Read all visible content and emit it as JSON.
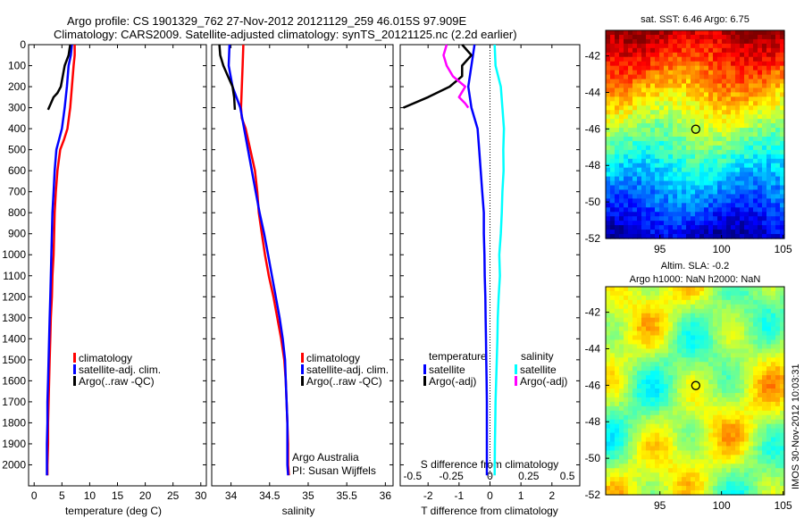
{
  "header": {
    "line1": "Argo profile: CS 1901329_762 27-Nov-2012 20121129_259 46.015S 97.909E",
    "line2": "Climatology: CARS2009. Satellite-adjusted climatology: synTS_20121125.nc (2.2d earlier)"
  },
  "side_label": "IMOS 30-Nov-2012 10:03:31",
  "colors": {
    "climatology": "#ff0000",
    "satellite_adj": "#0000ff",
    "argo": "#000000",
    "satellite_s": "#00ffff",
    "argo_s": "#ff00ff"
  },
  "chart_data": [
    {
      "id": "temperature",
      "type": "line",
      "xlabel": "temperature (deg C)",
      "ylabel": "",
      "xlim": [
        -1,
        31
      ],
      "ylim": [
        2100,
        0
      ],
      "xticks": [
        0,
        5,
        10,
        15,
        20,
        25,
        30
      ],
      "xtick_labels": [
        "0",
        "5",
        "10",
        "15",
        "20",
        "25",
        "30"
      ],
      "yticks": [
        0,
        100,
        200,
        300,
        400,
        500,
        600,
        700,
        800,
        900,
        1000,
        1100,
        1200,
        1300,
        1400,
        1500,
        1600,
        1700,
        1800,
        1900,
        2000
      ],
      "ytick_labels": [
        "0",
        "100",
        "200",
        "300",
        "400",
        "500",
        "600",
        "700",
        "800",
        "900",
        "1000",
        "1100",
        "1200",
        "1300",
        "1400",
        "1500",
        "1600",
        "1700",
        "1800",
        "1900",
        "2000"
      ],
      "legend": [
        "climatology",
        "satellite-adj. clim.",
        "Argo(..raw -QC)"
      ],
      "series": [
        {
          "name": "climatology",
          "color_key": "climatology",
          "x": [
            7.3,
            7.3,
            7.1,
            6.8,
            6.5,
            6.0,
            5.4,
            4.7,
            4.2,
            3.9,
            3.7,
            3.6,
            3.5,
            3.3,
            3.2,
            3.0,
            2.9,
            2.8,
            2.7,
            2.6,
            2.5,
            2.5,
            2.4,
            2.4
          ],
          "y": [
            0,
            50,
            100,
            200,
            300,
            400,
            450,
            500,
            600,
            700,
            800,
            900,
            1000,
            1100,
            1200,
            1300,
            1400,
            1500,
            1600,
            1700,
            1800,
            1900,
            2000,
            2050
          ]
        },
        {
          "name": "satellite-adj. clim.",
          "color_key": "satellite_adj",
          "x": [
            6.8,
            6.6,
            6.2,
            5.9,
            5.5,
            5.0,
            4.5,
            4.0,
            3.7,
            3.5,
            3.3,
            3.2,
            3.1,
            3.0,
            2.9,
            2.8,
            2.7,
            2.6,
            2.5,
            2.4,
            2.4,
            2.3,
            2.3,
            2.3
          ],
          "y": [
            0,
            50,
            100,
            200,
            300,
            400,
            450,
            500,
            600,
            700,
            800,
            900,
            1000,
            1100,
            1200,
            1300,
            1400,
            1500,
            1600,
            1700,
            1800,
            1900,
            2000,
            2050
          ]
        },
        {
          "name": "Argo(..raw -QC)",
          "color_key": "argo",
          "x": [
            6.5,
            6.2,
            5.5,
            4.8,
            4.2,
            3.5,
            3.0,
            2.5
          ],
          "y": [
            0,
            50,
            100,
            200,
            230,
            250,
            280,
            310
          ]
        }
      ]
    },
    {
      "id": "salinity",
      "type": "line",
      "xlabel": "salinity",
      "xlim": [
        33.75,
        36.1
      ],
      "ylim": [
        2100,
        0
      ],
      "xticks": [
        34,
        34.5,
        35,
        35.5,
        36
      ],
      "xtick_labels": [
        "34",
        "34.5",
        "35",
        "35.5",
        "36"
      ],
      "legend": [
        "climatology",
        "satellite-adj. clim.",
        "Argo(..raw -QC)"
      ],
      "annotations": [
        "Argo Australia",
        "PI: Susan Wijffels"
      ],
      "series": [
        {
          "name": "climatology",
          "color_key": "climatology",
          "x": [
            34.16,
            34.15,
            34.14,
            34.13,
            34.14,
            34.19,
            34.25,
            34.31,
            34.34,
            34.36,
            34.4,
            34.44,
            34.49,
            34.55,
            34.6,
            34.65,
            34.69,
            34.71,
            34.72,
            34.73,
            34.74,
            34.74,
            34.75
          ],
          "y": [
            0,
            100,
            200,
            300,
            350,
            400,
            500,
            600,
            700,
            800,
            900,
            1000,
            1100,
            1200,
            1300,
            1400,
            1500,
            1600,
            1700,
            1800,
            1900,
            2000,
            2050
          ]
        },
        {
          "name": "satellite-adj. clim.",
          "color_key": "satellite_adj",
          "x": [
            33.98,
            33.97,
            34.02,
            34.12,
            34.17,
            34.22,
            34.27,
            34.32,
            34.37,
            34.43,
            34.48,
            34.53,
            34.58,
            34.63,
            34.67,
            34.7,
            34.71,
            34.72,
            34.73,
            34.73,
            34.73,
            34.74
          ],
          "y": [
            0,
            100,
            200,
            300,
            400,
            500,
            600,
            700,
            800,
            900,
            1000,
            1100,
            1200,
            1300,
            1400,
            1500,
            1600,
            1700,
            1800,
            1900,
            2000,
            2050
          ]
        },
        {
          "name": "Argo(..raw -QC)",
          "color_key": "argo",
          "x": [
            33.85,
            33.86,
            33.9,
            33.96,
            34.02,
            34.04,
            34.05
          ],
          "y": [
            0,
            50,
            100,
            150,
            200,
            250,
            310
          ]
        }
      ]
    },
    {
      "id": "difference",
      "type": "line",
      "xlabel": "T difference from climatology",
      "xlabel2": "S difference from climatology",
      "xlim": [
        -2.9,
        2.9
      ],
      "ylim": [
        2100,
        0
      ],
      "xticks": [
        -2,
        -1,
        0,
        1,
        2
      ],
      "xtick_labels": [
        "-2",
        "-1",
        "0",
        "1",
        "2"
      ],
      "xticks2": [
        -0.5,
        -0.25,
        0,
        0.25,
        0.5
      ],
      "xtick2_labels": [
        "-0.5",
        "-0.25",
        "0",
        "0.25",
        "0.5"
      ],
      "legend_titles": [
        "temperature",
        "salinity"
      ],
      "legend_t": [
        "satellite",
        "Argo(-adj)"
      ],
      "legend_s": [
        "satellite",
        "Argo(-adj)"
      ],
      "series": [
        {
          "name": "temperature satellite",
          "color_key": "satellite_adj",
          "x": [
            -0.5,
            -0.6,
            -0.7,
            -0.6,
            -0.4,
            -0.35,
            -0.3,
            -0.25,
            -0.2,
            -0.2,
            -0.18,
            -0.17,
            -0.15,
            -0.14,
            -0.13,
            -0.12,
            -0.11,
            -0.1,
            -0.1,
            -0.1,
            -0.1
          ],
          "y": [
            0,
            100,
            200,
            300,
            400,
            500,
            600,
            700,
            800,
            900,
            1000,
            1100,
            1200,
            1300,
            1400,
            1500,
            1600,
            1700,
            1800,
            1900,
            2050
          ]
        },
        {
          "name": "Argo temperature",
          "color_key": "argo",
          "x": [
            -0.9,
            -0.6,
            -0.9,
            -0.9,
            -1.3,
            -2.0,
            -2.8
          ],
          "y": [
            0,
            50,
            100,
            150,
            200,
            250,
            300
          ]
        },
        {
          "name": "salinity satellite",
          "color_key": "satellite_s",
          "x": [
            0.15,
            0.18,
            0.35,
            0.4,
            0.45,
            0.43,
            0.44,
            0.4,
            0.38,
            0.35,
            0.3,
            0.32,
            0.28,
            0.25,
            0.24,
            0.22,
            0.2,
            0.18,
            0.17,
            0.16,
            0.15
          ],
          "y": [
            0,
            100,
            200,
            300,
            400,
            500,
            600,
            700,
            800,
            900,
            1000,
            1100,
            1200,
            1300,
            1400,
            1500,
            1600,
            1700,
            1800,
            1900,
            2050
          ]
        },
        {
          "name": "Argo salinity",
          "color_key": "argo_s",
          "x": [
            -1.4,
            -1.5,
            -1.4,
            -1.2,
            -0.8,
            -1.0,
            -0.8,
            -0.7
          ],
          "y": [
            0,
            50,
            100,
            150,
            200,
            250,
            280,
            300
          ]
        }
      ]
    },
    {
      "id": "sst_map",
      "type": "heatmap",
      "title": "sat. SST: 6.46 Argo: 6.75",
      "xlim": [
        90.6,
        105.1
      ],
      "ylim": [
        -52,
        -40.6
      ],
      "xticks": [
        95,
        100,
        105
      ],
      "yticks": [
        -42,
        -44,
        -46,
        -48,
        -50,
        -52
      ],
      "xtick_labels": [
        "95",
        "100",
        "105"
      ],
      "ytick_labels": [
        "-42",
        "-44",
        "-46",
        "-48",
        "-50",
        "-52"
      ],
      "marker": {
        "lon": 97.909,
        "lat": -46.015
      }
    },
    {
      "id": "sla_map",
      "type": "heatmap",
      "title": "Altim. SLA: -0.2",
      "subtitle": "Argo h1000: NaN h2000: NaN",
      "xlim": [
        90.6,
        105.1
      ],
      "ylim": [
        -52,
        -40.6
      ],
      "xticks": [
        95,
        100,
        105
      ],
      "yticks": [
        -42,
        -44,
        -46,
        -48,
        -50,
        -52
      ],
      "xtick_labels": [
        "95",
        "100",
        "105"
      ],
      "ytick_labels": [
        "-42",
        "-44",
        "-46",
        "-48",
        "-50",
        "-52"
      ],
      "marker": {
        "lon": 97.909,
        "lat": -46.015
      }
    }
  ]
}
